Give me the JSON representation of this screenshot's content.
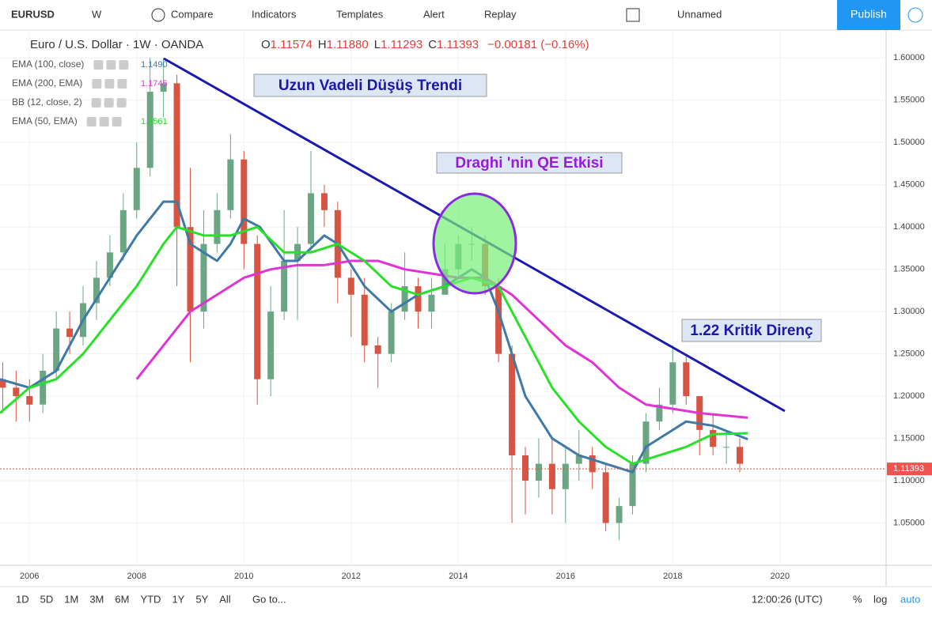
{
  "toolbar": {
    "symbol": "EURUSD",
    "interval": "W",
    "buttons": [
      "Compare",
      "Indicators",
      "Templates",
      "Alert",
      "Replay"
    ],
    "layout": "Unnamed",
    "publish": "Publish"
  },
  "header": {
    "instrument": "Euro / U.S. Dollar · 1W · OANDA",
    "ohlc": [
      {
        "label": "O",
        "value": "1.11574"
      },
      {
        "label": "H",
        "value": "1.11880"
      },
      {
        "label": "L",
        "value": "1.11293"
      },
      {
        "label": "C",
        "value": "1.11393"
      },
      {
        "label": "",
        "value": "−0.00181 (−0.16%)"
      }
    ]
  },
  "annotations": [
    "Uzun Vadeli Düşüş Trendi",
    "Draghi 'nin QE Etkisi",
    "1.22 Kritik Direnç"
  ],
  "extra_indicator": "BB (12, close, 2)",
  "bottom_bar": {
    "ranges": [
      "1D",
      "5D",
      "1M",
      "3M",
      "6M",
      "YTD",
      "1Y",
      "5Y",
      "All"
    ],
    "goto": "Go to...",
    "clock": "12:00:26 (UTC)",
    "options": [
      "%",
      "log",
      "auto"
    ]
  },
  "chart_data": {
    "type": "candlestick",
    "up_color": "#6ba583",
    "down_color": "#d75442",
    "xlim": [
      2005.45,
      2021.98
    ],
    "xticks": [
      2006,
      2008,
      2010,
      2012,
      2014,
      2016,
      2018,
      2020
    ],
    "ylim": [
      1.0,
      1.633
    ],
    "yticks": [
      {
        "value": 1.05,
        "label": "1.05000"
      },
      {
        "value": 1.1,
        "label": "1.10000"
      },
      {
        "value": 1.15,
        "label": "1.15000"
      },
      {
        "value": 1.2,
        "label": "1.20000"
      },
      {
        "value": 1.25,
        "label": "1.25000"
      },
      {
        "value": 1.3,
        "label": "1.30000"
      },
      {
        "value": 1.35,
        "label": "1.35000"
      },
      {
        "value": 1.4,
        "label": "1.40000"
      },
      {
        "value": 1.45,
        "label": "1.45000"
      },
      {
        "value": 1.5,
        "label": "1.50000"
      },
      {
        "value": 1.55,
        "label": "1.55000"
      },
      {
        "value": 1.6,
        "label": "1.60000"
      }
    ],
    "grid": true,
    "last_price": 1.11393,
    "x": [
      2005.5,
      2005.75,
      2006,
      2006.25,
      2006.5,
      2006.75,
      2007,
      2007.25,
      2007.5,
      2007.75,
      2008,
      2008.25,
      2008.5,
      2008.75,
      2009,
      2009.25,
      2009.5,
      2009.75,
      2010,
      2010.25,
      2010.5,
      2010.75,
      2011,
      2011.25,
      2011.5,
      2011.75,
      2012,
      2012.25,
      2012.5,
      2012.75,
      2013,
      2013.25,
      2013.5,
      2013.75,
      2014,
      2014.25,
      2014.5,
      2014.75,
      2015,
      2015.25,
      2015.5,
      2015.75,
      2016,
      2016.25,
      2016.5,
      2016.75,
      2017,
      2017.25,
      2017.5,
      2017.75,
      2018,
      2018.25,
      2018.5,
      2018.75,
      2019,
      2019.25
    ],
    "open": [
      1.22,
      1.21,
      1.2,
      1.19,
      1.23,
      1.28,
      1.27,
      1.31,
      1.34,
      1.37,
      1.42,
      1.47,
      1.56,
      1.57,
      1.4,
      1.3,
      1.38,
      1.42,
      1.48,
      1.38,
      1.22,
      1.3,
      1.36,
      1.38,
      1.44,
      1.42,
      1.34,
      1.32,
      1.26,
      1.25,
      1.3,
      1.33,
      1.3,
      1.32,
      1.35,
      1.38,
      1.38,
      1.33,
      1.25,
      1.13,
      1.1,
      1.12,
      1.09,
      1.12,
      1.13,
      1.11,
      1.05,
      1.07,
      1.12,
      1.17,
      1.19,
      1.24,
      1.2,
      1.16,
      1.14,
      1.14
    ],
    "high": [
      1.24,
      1.23,
      1.22,
      1.25,
      1.3,
      1.3,
      1.33,
      1.36,
      1.39,
      1.44,
      1.5,
      1.6,
      1.6,
      1.58,
      1.47,
      1.42,
      1.44,
      1.51,
      1.49,
      1.39,
      1.33,
      1.42,
      1.4,
      1.49,
      1.45,
      1.43,
      1.35,
      1.34,
      1.27,
      1.31,
      1.37,
      1.34,
      1.34,
      1.38,
      1.39,
      1.4,
      1.39,
      1.34,
      1.26,
      1.14,
      1.15,
      1.15,
      1.14,
      1.16,
      1.14,
      1.12,
      1.08,
      1.13,
      1.18,
      1.21,
      1.26,
      1.25,
      1.2,
      1.18,
      1.16,
      1.15
    ],
    "low": [
      1.18,
      1.17,
      1.17,
      1.18,
      1.22,
      1.25,
      1.26,
      1.29,
      1.33,
      1.36,
      1.41,
      1.46,
      1.53,
      1.33,
      1.24,
      1.28,
      1.37,
      1.41,
      1.35,
      1.19,
      1.2,
      1.29,
      1.29,
      1.37,
      1.4,
      1.31,
      1.27,
      1.24,
      1.21,
      1.24,
      1.29,
      1.28,
      1.28,
      1.32,
      1.34,
      1.36,
      1.32,
      1.24,
      1.05,
      1.06,
      1.08,
      1.06,
      1.05,
      1.1,
      1.09,
      1.04,
      1.03,
      1.06,
      1.11,
      1.16,
      1.18,
      1.19,
      1.13,
      1.13,
      1.12,
      1.11
    ],
    "close": [
      1.21,
      1.2,
      1.19,
      1.23,
      1.28,
      1.27,
      1.31,
      1.34,
      1.37,
      1.42,
      1.47,
      1.56,
      1.57,
      1.4,
      1.3,
      1.38,
      1.42,
      1.48,
      1.38,
      1.22,
      1.3,
      1.36,
      1.38,
      1.44,
      1.42,
      1.34,
      1.32,
      1.26,
      1.25,
      1.3,
      1.33,
      1.3,
      1.32,
      1.35,
      1.38,
      1.38,
      1.33,
      1.25,
      1.13,
      1.1,
      1.12,
      1.09,
      1.12,
      1.13,
      1.11,
      1.05,
      1.07,
      1.12,
      1.17,
      1.19,
      1.24,
      1.2,
      1.16,
      1.14,
      1.14,
      1.12
    ],
    "series": [
      {
        "name": "EMA (100, close)",
        "legend_value": "1.1490",
        "color": "#3f7aa6",
        "x": [
          2005.45,
          2006,
          2006.5,
          2007,
          2007.5,
          2008,
          2008.5,
          2008.75,
          2009,
          2009.5,
          2009.75,
          2010,
          2010.3,
          2010.75,
          2011,
          2011.5,
          2011.75,
          2012.25,
          2012.75,
          2013.25,
          2013.75,
          2014.25,
          2014.5,
          2014.75,
          2015.25,
          2015.75,
          2016.25,
          2016.75,
          2017.25,
          2017.5,
          2018,
          2018.25,
          2018.75,
          2019.4
        ],
        "values": [
          1.22,
          1.21,
          1.23,
          1.29,
          1.34,
          1.39,
          1.43,
          1.43,
          1.38,
          1.36,
          1.38,
          1.41,
          1.4,
          1.36,
          1.36,
          1.39,
          1.38,
          1.33,
          1.3,
          1.32,
          1.33,
          1.35,
          1.34,
          1.3,
          1.2,
          1.15,
          1.13,
          1.12,
          1.11,
          1.14,
          1.16,
          1.17,
          1.165,
          1.149
        ]
      },
      {
        "name": "EMA (200, EMA)",
        "legend_value": "1.1745",
        "color": "#e033d6",
        "x": [
          2008,
          2008.5,
          2009,
          2009.5,
          2010,
          2010.5,
          2011,
          2011.5,
          2012,
          2012.5,
          2013,
          2013.5,
          2014,
          2014.5,
          2015,
          2015.5,
          2016,
          2016.5,
          2017,
          2017.5,
          2018,
          2018.5,
          2019.4
        ],
        "values": [
          1.22,
          1.26,
          1.3,
          1.32,
          1.34,
          1.35,
          1.355,
          1.355,
          1.36,
          1.36,
          1.35,
          1.345,
          1.34,
          1.34,
          1.32,
          1.29,
          1.26,
          1.24,
          1.21,
          1.19,
          1.185,
          1.18,
          1.1745
        ]
      },
      {
        "name": "EMA (50, EMA)",
        "legend_value": "1.1561",
        "color": "#28e028",
        "x": [
          2005.45,
          2006,
          2006.5,
          2007,
          2007.5,
          2008,
          2008.5,
          2008.75,
          2009.25,
          2009.75,
          2010.25,
          2010.75,
          2011.25,
          2011.75,
          2012.25,
          2012.75,
          2013.25,
          2013.75,
          2014.25,
          2014.75,
          2015.25,
          2015.75,
          2016.25,
          2016.75,
          2017.25,
          2017.75,
          2018.25,
          2018.75,
          2019.4
        ],
        "values": [
          1.18,
          1.21,
          1.22,
          1.25,
          1.29,
          1.33,
          1.38,
          1.4,
          1.39,
          1.39,
          1.4,
          1.37,
          1.37,
          1.38,
          1.36,
          1.33,
          1.32,
          1.33,
          1.34,
          1.33,
          1.27,
          1.21,
          1.17,
          1.14,
          1.12,
          1.13,
          1.14,
          1.155,
          1.1561
        ]
      }
    ]
  }
}
